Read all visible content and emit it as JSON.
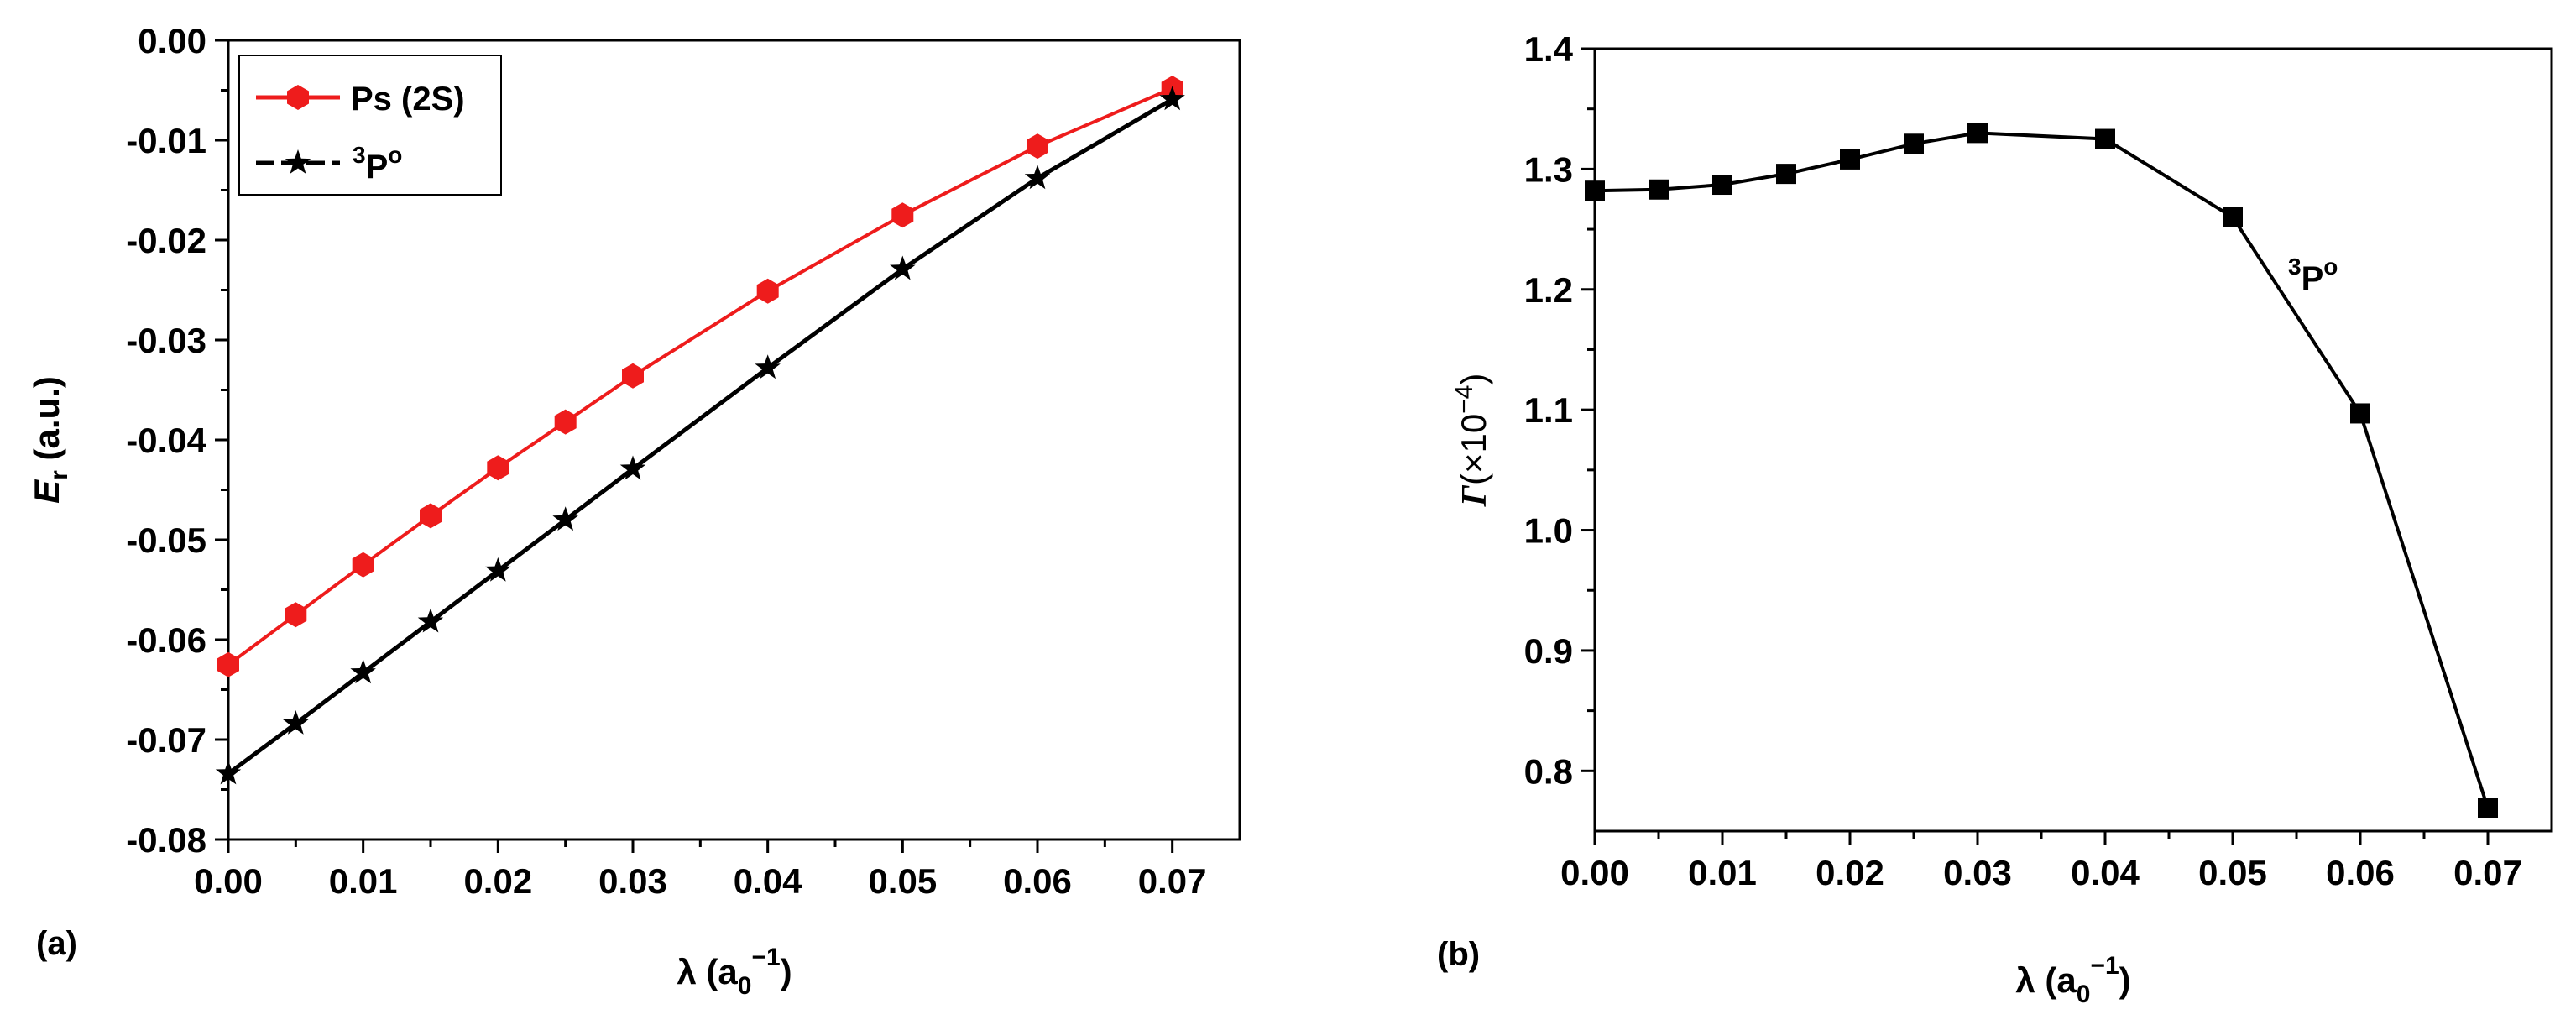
{
  "chart_data": [
    {
      "type": "line",
      "panel_label": "(a)",
      "xlabel": "λ (a0−1)",
      "ylabel": "Er (a.u.)",
      "xlim": [
        0.0,
        0.075
      ],
      "ylim": [
        -0.08,
        0.0
      ],
      "x_ticks": [
        "0.00",
        "0.01",
        "0.02",
        "0.03",
        "0.04",
        "0.05",
        "0.06",
        "0.07"
      ],
      "y_ticks": [
        "0.00",
        "-0.01",
        "-0.02",
        "-0.03",
        "-0.04",
        "-0.05",
        "-0.06",
        "-0.07",
        "-0.08"
      ],
      "legend_position": "top-left",
      "grid": false,
      "series": [
        {
          "name": "Ps (2S)",
          "color": "#ee1c1c",
          "marker": "hexagon",
          "x": [
            0.0,
            0.005,
            0.01,
            0.015,
            0.02,
            0.025,
            0.03,
            0.04,
            0.05,
            0.06,
            0.07
          ],
          "y": [
            -0.0625,
            -0.0575,
            -0.0525,
            -0.0476,
            -0.0428,
            -0.0382,
            -0.0336,
            -0.0251,
            -0.0175,
            -0.0106,
            -0.0048
          ]
        },
        {
          "name": "3Po",
          "color": "#000000",
          "marker": "star",
          "x": [
            0.0,
            0.005,
            0.01,
            0.015,
            0.02,
            0.025,
            0.03,
            0.04,
            0.05,
            0.06,
            0.07
          ],
          "y": [
            -0.0734,
            -0.0684,
            -0.0633,
            -0.0582,
            -0.0531,
            -0.048,
            -0.0429,
            -0.0328,
            -0.0229,
            -0.0138,
            -0.0059
          ]
        }
      ]
    },
    {
      "type": "line",
      "panel_label": "(b)",
      "xlabel": "λ (a0−1)",
      "ylabel": "Γ(×10−4)",
      "xlim": [
        0.0,
        0.075
      ],
      "ylim": [
        0.75,
        1.4
      ],
      "x_ticks": [
        "0.00",
        "0.01",
        "0.02",
        "0.03",
        "0.04",
        "0.05",
        "0.06",
        "0.07"
      ],
      "y_ticks": [
        "1.4",
        "1.3",
        "1.2",
        "1.1",
        "1.0",
        "0.9",
        "0.8"
      ],
      "annotation": "3Po",
      "grid": false,
      "series": [
        {
          "name": "3Po",
          "color": "#000000",
          "marker": "square",
          "x": [
            0.0,
            0.005,
            0.01,
            0.015,
            0.02,
            0.025,
            0.03,
            0.04,
            0.05,
            0.06,
            0.07
          ],
          "y": [
            1.282,
            1.283,
            1.287,
            1.296,
            1.308,
            1.321,
            1.33,
            1.325,
            1.26,
            1.097,
            0.769
          ]
        }
      ]
    }
  ]
}
